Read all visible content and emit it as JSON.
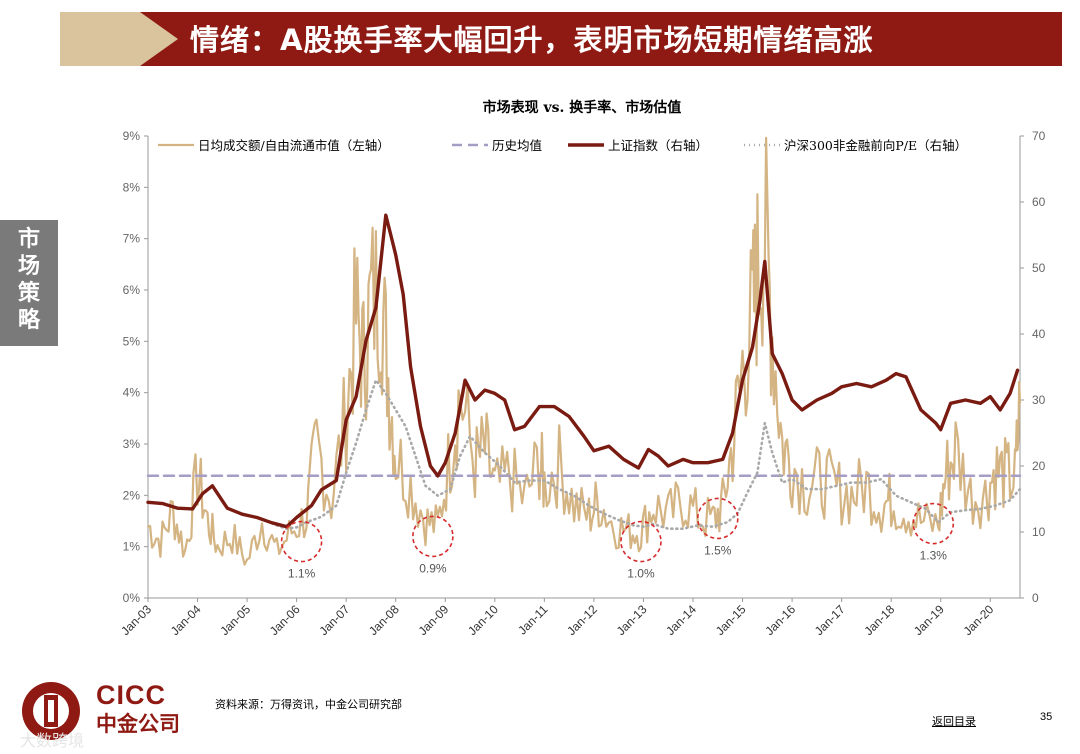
{
  "slide": {
    "title": "情绪：A股换手率大幅回升，表明市场短期情绪高涨",
    "side_tab": "市场策略",
    "source": "资料来源：万得资讯，中金公司研究部",
    "back_link": "返回目录",
    "page_number": "35",
    "watermark": "大数跨境"
  },
  "logo": {
    "en": "CICC",
    "zh": "中金公司"
  },
  "colors": {
    "header_red": "#8f1a13",
    "header_tan": "#d9c49d",
    "side_tab": "#7a7a7a",
    "turnover": "#d4b483",
    "average": "#a59dc4",
    "index": "#7a1b12",
    "pe": "#a9a9a9",
    "circle": "#d52b2b"
  },
  "chart_data": {
    "type": "line",
    "title": "市场表现 vs. 换手率、市场估值",
    "x_ticks": [
      "Jan-03",
      "Jan-04",
      "Jan-05",
      "Jan-06",
      "Jan-07",
      "Jan-08",
      "Jan-09",
      "Jan-10",
      "Jan-11",
      "Jan-12",
      "Jan-13",
      "Jan-14",
      "Jan-15",
      "Jan-16",
      "Jan-17",
      "Jan-18",
      "Jan-19",
      "Jan-20"
    ],
    "x_range": [
      2003.0,
      2020.6
    ],
    "y_left": {
      "ticks": [
        "0%",
        "1%",
        "2%",
        "3%",
        "4%",
        "5%",
        "6%",
        "7%",
        "8%",
        "9%"
      ],
      "range": [
        0,
        9
      ]
    },
    "y_right": {
      "ticks": [
        "0",
        "10",
        "20",
        "30",
        "40",
        "50",
        "60",
        "70"
      ],
      "range": [
        0,
        70
      ]
    },
    "legend": [
      "日均成交额/自由流通市值（左轴）",
      "历史均值",
      "上证指数（右轴）",
      "沪深300非金融前向P/E（右轴）"
    ],
    "legend_position": "top",
    "series": [
      {
        "name": "日均成交额/自由流通市值（左轴）",
        "axis": "left",
        "style": "solid-thin",
        "x": [
          2003.0,
          2003.25,
          2003.5,
          2003.75,
          2004.0,
          2004.2,
          2004.4,
          2004.7,
          2005.0,
          2005.3,
          2005.6,
          2005.9,
          2006.2,
          2006.4,
          2006.7,
          2007.0,
          2007.2,
          2007.35,
          2007.5,
          2007.7,
          2007.85,
          2008.0,
          2008.3,
          2008.6,
          2008.85,
          2009.1,
          2009.3,
          2009.6,
          2009.8,
          2010.0,
          2010.3,
          2010.6,
          2010.9,
          2011.0,
          2011.3,
          2011.6,
          2011.9,
          2012.1,
          2012.4,
          2012.7,
          2012.95,
          2013.2,
          2013.5,
          2013.8,
          2014.1,
          2014.4,
          2014.6,
          2014.8,
          2015.0,
          2015.2,
          2015.3,
          2015.45,
          2015.6,
          2015.8,
          2016.0,
          2016.3,
          2016.6,
          2016.9,
          2017.2,
          2017.5,
          2017.8,
          2018.0,
          2018.3,
          2018.6,
          2018.95,
          2019.1,
          2019.3,
          2019.6,
          2019.9,
          2020.1,
          2020.3,
          2020.5,
          2020.6
        ],
        "values": [
          1.4,
          1.1,
          1.7,
          0.9,
          2.4,
          1.5,
          1.0,
          1.2,
          0.7,
          1.5,
          0.9,
          1.3,
          1.6,
          3.0,
          1.9,
          3.6,
          5.5,
          4.6,
          5.8,
          6.0,
          4.3,
          2.8,
          2.2,
          1.5,
          1.4,
          2.8,
          4.0,
          2.6,
          2.9,
          2.1,
          2.4,
          1.9,
          2.7,
          2.2,
          2.6,
          1.8,
          1.6,
          1.9,
          1.4,
          1.3,
          1.3,
          1.8,
          1.6,
          1.9,
          1.6,
          1.5,
          1.8,
          3.0,
          4.5,
          5.5,
          6.3,
          7.2,
          5.2,
          3.0,
          2.6,
          2.2,
          2.3,
          2.1,
          2.0,
          2.2,
          1.8,
          1.9,
          1.7,
          1.5,
          1.4,
          2.4,
          2.9,
          2.0,
          2.0,
          2.5,
          2.4,
          2.3,
          3.8
        ]
      },
      {
        "name": "历史均值",
        "axis": "left",
        "style": "dashed",
        "x": [
          2003.0,
          2020.6
        ],
        "values": [
          2.38,
          2.38
        ]
      },
      {
        "name": "上证指数（右轴）",
        "axis": "right",
        "style": "solid-thick",
        "x": [
          2003.0,
          2003.3,
          2003.6,
          2003.9,
          2004.1,
          2004.3,
          2004.6,
          2004.9,
          2005.2,
          2005.5,
          2005.8,
          2006.0,
          2006.3,
          2006.5,
          2006.8,
          2007.0,
          2007.2,
          2007.4,
          2007.6,
          2007.8,
          2007.9,
          2008.0,
          2008.15,
          2008.3,
          2008.5,
          2008.7,
          2008.85,
          2009.0,
          2009.2,
          2009.4,
          2009.6,
          2009.8,
          2010.0,
          2010.2,
          2010.4,
          2010.6,
          2010.9,
          2011.2,
          2011.5,
          2011.8,
          2012.0,
          2012.3,
          2012.6,
          2012.9,
          2013.1,
          2013.3,
          2013.5,
          2013.8,
          2014.0,
          2014.3,
          2014.6,
          2014.8,
          2015.0,
          2015.2,
          2015.35,
          2015.45,
          2015.6,
          2015.8,
          2016.0,
          2016.2,
          2016.5,
          2016.8,
          2017.0,
          2017.3,
          2017.6,
          2017.9,
          2018.1,
          2018.3,
          2018.6,
          2018.9,
          2019.0,
          2019.2,
          2019.5,
          2019.8,
          2020.0,
          2020.2,
          2020.4,
          2020.55
        ],
        "values": [
          14.5,
          14.3,
          13.6,
          13.5,
          15.8,
          17.0,
          13.6,
          12.7,
          12.2,
          11.4,
          10.8,
          12.2,
          14.0,
          16.4,
          17.8,
          27.0,
          30.5,
          39.0,
          44.0,
          58.0,
          55.0,
          52.0,
          46.0,
          35.0,
          26.0,
          20.0,
          18.5,
          20.5,
          25.0,
          33.0,
          30.0,
          31.5,
          31.0,
          30.0,
          25.5,
          26.0,
          29.0,
          29.0,
          27.5,
          24.5,
          22.3,
          23.0,
          21.0,
          19.7,
          22.5,
          21.5,
          20.0,
          21.0,
          20.5,
          20.5,
          21.0,
          25.0,
          33.0,
          38.0,
          45.0,
          51.0,
          37.0,
          34.0,
          30.0,
          28.5,
          30.0,
          31.0,
          32.0,
          32.5,
          32.0,
          33.0,
          34.0,
          33.5,
          28.5,
          26.5,
          25.5,
          29.5,
          30.0,
          29.5,
          30.5,
          28.5,
          31.0,
          34.5
        ]
      },
      {
        "name": "沪深300非金融前向P/E（右轴）",
        "axis": "right",
        "style": "dotted",
        "x": [
          2005.6,
          2005.8,
          2006.0,
          2006.2,
          2006.5,
          2006.8,
          2007.0,
          2007.2,
          2007.4,
          2007.6,
          2007.8,
          2008.0,
          2008.2,
          2008.4,
          2008.6,
          2008.85,
          2009.1,
          2009.3,
          2009.5,
          2009.8,
          2010.1,
          2010.4,
          2010.7,
          2011.0,
          2011.3,
          2011.6,
          2011.9,
          2012.2,
          2012.5,
          2012.8,
          2013.0,
          2013.2,
          2013.5,
          2013.8,
          2014.1,
          2014.4,
          2014.7,
          2014.9,
          2015.1,
          2015.3,
          2015.45,
          2015.6,
          2015.8,
          2016.0,
          2016.3,
          2016.6,
          2016.9,
          2017.2,
          2017.5,
          2017.8,
          2018.1,
          2018.4,
          2018.7,
          2018.95,
          2019.2,
          2019.5,
          2019.8,
          2020.1,
          2020.4,
          2020.6
        ],
        "values": [
          11.0,
          10.5,
          10.7,
          11.5,
          12.3,
          14.0,
          19.0,
          23.5,
          28.5,
          33.0,
          31.0,
          28.5,
          26.0,
          21.5,
          17.0,
          15.5,
          16.5,
          21.5,
          24.5,
          22.0,
          20.0,
          17.5,
          17.8,
          17.8,
          16.5,
          15.5,
          14.0,
          12.8,
          11.8,
          11.0,
          10.8,
          11.2,
          10.5,
          10.5,
          11.0,
          10.8,
          11.5,
          12.8,
          16.0,
          19.0,
          26.5,
          22.0,
          17.5,
          18.0,
          16.5,
          16.5,
          17.0,
          17.5,
          17.5,
          18.0,
          15.5,
          14.5,
          13.5,
          11.5,
          13.0,
          13.3,
          13.5,
          14.0,
          14.8,
          16.5
        ]
      }
    ],
    "annotations": [
      {
        "label": "1.1%",
        "x": 2006.1,
        "y": 1.1
      },
      {
        "label": "0.9%",
        "x": 2008.75,
        "y": 1.2
      },
      {
        "label": "1.0%",
        "x": 2012.95,
        "y": 1.1
      },
      {
        "label": "1.5%",
        "x": 2014.5,
        "y": 1.55
      },
      {
        "label": "1.3%",
        "x": 2018.85,
        "y": 1.45
      }
    ],
    "grid": false
  }
}
